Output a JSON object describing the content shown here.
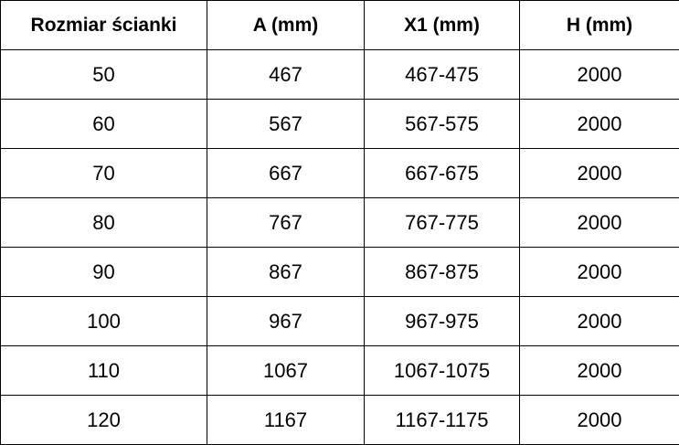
{
  "table": {
    "headers": [
      "Rozmiar ścianki",
      "A (mm)",
      "X1 (mm)",
      "H (mm)"
    ],
    "rows": [
      [
        "50",
        "467",
        "467-475",
        "2000"
      ],
      [
        "60",
        "567",
        "567-575",
        "2000"
      ],
      [
        "70",
        "667",
        "667-675",
        "2000"
      ],
      [
        "80",
        "767",
        "767-775",
        "2000"
      ],
      [
        "90",
        "867",
        "867-875",
        "2000"
      ],
      [
        "100",
        "967",
        "967-975",
        "2000"
      ],
      [
        "110",
        "1067",
        "1067-1075",
        "2000"
      ],
      [
        "120",
        "1167",
        "1167-1175",
        "2000"
      ]
    ]
  }
}
